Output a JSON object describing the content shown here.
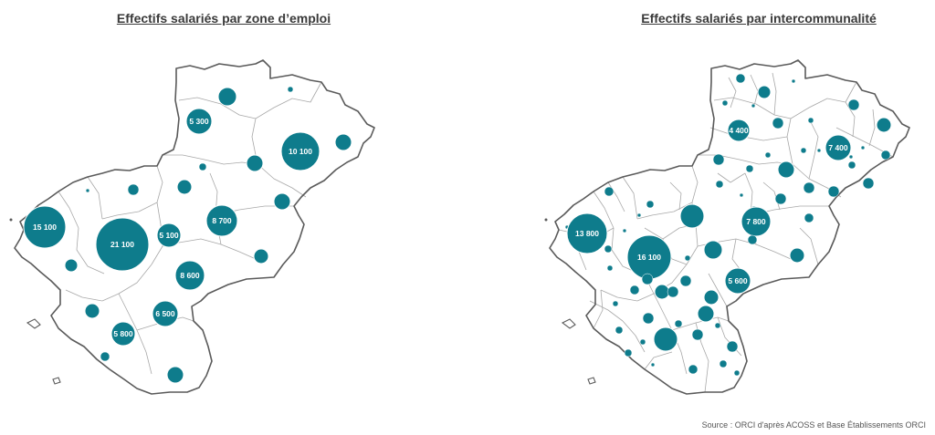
{
  "colors": {
    "bubble": "#0e7c8c",
    "outline": "#5a5a5a",
    "inner_border": "#a8a8a8",
    "land": "#ffffff"
  },
  "maps": [
    {
      "title": "Effectifs salariés par zone d’emploi",
      "labels": [
        "5 300",
        "10 100",
        "15 100",
        "21 100",
        "5 100",
        "8 700",
        "8 600",
        "6 500",
        "5 800"
      ]
    },
    {
      "title": "Effectifs salariés par intercommunalité",
      "labels": [
        "4 400",
        "7 400",
        "13 800",
        "16 100",
        "7 800",
        "5 600"
      ]
    }
  ],
  "source": "Source : ORCI d'après ACOSS et Base Établissements ORCI"
}
